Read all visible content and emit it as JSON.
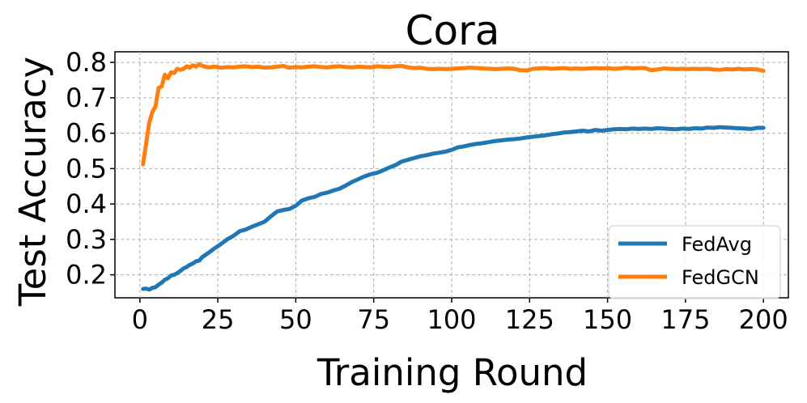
{
  "chart_data": {
    "type": "line",
    "title": "Cora",
    "xlabel": "Training Round",
    "ylabel": "Test Accuracy",
    "xlim": [
      -8,
      208
    ],
    "ylim": [
      0.135,
      0.83
    ],
    "x_ticks": [
      0,
      25,
      50,
      75,
      100,
      125,
      150,
      175,
      200
    ],
    "y_ticks": [
      0.2,
      0.3,
      0.4,
      0.5,
      0.6,
      0.7,
      0.8
    ],
    "y_tick_labels": [
      "0.2",
      "0.3",
      "0.4",
      "0.5",
      "0.6",
      "0.7",
      "0.8"
    ],
    "grid": true,
    "legend_position": "lower-right",
    "series": [
      {
        "name": "FedAvg",
        "color": "#1f77b4",
        "points": [
          [
            1,
            0.16
          ],
          [
            2,
            0.161
          ],
          [
            3,
            0.158
          ],
          [
            4,
            0.163
          ],
          [
            5,
            0.165
          ],
          [
            6,
            0.172
          ],
          [
            7,
            0.178
          ],
          [
            8,
            0.186
          ],
          [
            9,
            0.19
          ],
          [
            10,
            0.198
          ],
          [
            11,
            0.2
          ],
          [
            12,
            0.205
          ],
          [
            13,
            0.211
          ],
          [
            14,
            0.218
          ],
          [
            15,
            0.222
          ],
          [
            16,
            0.228
          ],
          [
            17,
            0.232
          ],
          [
            18,
            0.238
          ],
          [
            19,
            0.24
          ],
          [
            20,
            0.25
          ],
          [
            22,
            0.262
          ],
          [
            24,
            0.275
          ],
          [
            26,
            0.287
          ],
          [
            28,
            0.3
          ],
          [
            30,
            0.31
          ],
          [
            32,
            0.323
          ],
          [
            34,
            0.328
          ],
          [
            36,
            0.336
          ],
          [
            38,
            0.343
          ],
          [
            40,
            0.35
          ],
          [
            42,
            0.365
          ],
          [
            44,
            0.379
          ],
          [
            46,
            0.383
          ],
          [
            48,
            0.386
          ],
          [
            50,
            0.395
          ],
          [
            52,
            0.41
          ],
          [
            54,
            0.416
          ],
          [
            56,
            0.42
          ],
          [
            58,
            0.428
          ],
          [
            60,
            0.432
          ],
          [
            62,
            0.438
          ],
          [
            64,
            0.443
          ],
          [
            66,
            0.452
          ],
          [
            68,
            0.462
          ],
          [
            70,
            0.47
          ],
          [
            72,
            0.478
          ],
          [
            74,
            0.484
          ],
          [
            76,
            0.488
          ],
          [
            78,
            0.495
          ],
          [
            80,
            0.503
          ],
          [
            82,
            0.51
          ],
          [
            84,
            0.52
          ],
          [
            86,
            0.525
          ],
          [
            88,
            0.53
          ],
          [
            90,
            0.535
          ],
          [
            92,
            0.538
          ],
          [
            94,
            0.542
          ],
          [
            96,
            0.545
          ],
          [
            98,
            0.548
          ],
          [
            100,
            0.553
          ],
          [
            102,
            0.56
          ],
          [
            104,
            0.563
          ],
          [
            106,
            0.567
          ],
          [
            108,
            0.57
          ],
          [
            110,
            0.572
          ],
          [
            112,
            0.575
          ],
          [
            114,
            0.578
          ],
          [
            116,
            0.58
          ],
          [
            118,
            0.582
          ],
          [
            120,
            0.583
          ],
          [
            122,
            0.585
          ],
          [
            124,
            0.588
          ],
          [
            126,
            0.59
          ],
          [
            128,
            0.592
          ],
          [
            130,
            0.594
          ],
          [
            132,
            0.597
          ],
          [
            134,
            0.599
          ],
          [
            136,
            0.602
          ],
          [
            138,
            0.603
          ],
          [
            140,
            0.605
          ],
          [
            142,
            0.607
          ],
          [
            144,
            0.605
          ],
          [
            146,
            0.609
          ],
          [
            148,
            0.607
          ],
          [
            150,
            0.609
          ],
          [
            152,
            0.611
          ],
          [
            154,
            0.612
          ],
          [
            156,
            0.611
          ],
          [
            158,
            0.613
          ],
          [
            160,
            0.612
          ],
          [
            162,
            0.613
          ],
          [
            164,
            0.612
          ],
          [
            166,
            0.614
          ],
          [
            168,
            0.613
          ],
          [
            170,
            0.612
          ],
          [
            172,
            0.611
          ],
          [
            174,
            0.613
          ],
          [
            176,
            0.612
          ],
          [
            178,
            0.614
          ],
          [
            180,
            0.613
          ],
          [
            182,
            0.616
          ],
          [
            184,
            0.615
          ],
          [
            186,
            0.617
          ],
          [
            188,
            0.616
          ],
          [
            190,
            0.615
          ],
          [
            192,
            0.614
          ],
          [
            194,
            0.613
          ],
          [
            196,
            0.612
          ],
          [
            198,
            0.615
          ],
          [
            200,
            0.615
          ]
        ]
      },
      {
        "name": "FedGCN",
        "color": "#ff7f0e",
        "points": [
          [
            1,
            0.512
          ],
          [
            2,
            0.57
          ],
          [
            3,
            0.63
          ],
          [
            4,
            0.66
          ],
          [
            5,
            0.675
          ],
          [
            6,
            0.728
          ],
          [
            7,
            0.732
          ],
          [
            8,
            0.765
          ],
          [
            9,
            0.755
          ],
          [
            10,
            0.772
          ],
          [
            11,
            0.77
          ],
          [
            12,
            0.782
          ],
          [
            13,
            0.779
          ],
          [
            14,
            0.782
          ],
          [
            15,
            0.789
          ],
          [
            16,
            0.785
          ],
          [
            17,
            0.792
          ],
          [
            18,
            0.788
          ],
          [
            19,
            0.795
          ],
          [
            20,
            0.79
          ],
          [
            22,
            0.786
          ],
          [
            24,
            0.788
          ],
          [
            26,
            0.785
          ],
          [
            28,
            0.787
          ],
          [
            30,
            0.786
          ],
          [
            32,
            0.788
          ],
          [
            34,
            0.789
          ],
          [
            36,
            0.787
          ],
          [
            38,
            0.788
          ],
          [
            40,
            0.785
          ],
          [
            42,
            0.786
          ],
          [
            44,
            0.788
          ],
          [
            46,
            0.79
          ],
          [
            48,
            0.785
          ],
          [
            50,
            0.787
          ],
          [
            52,
            0.786
          ],
          [
            54,
            0.788
          ],
          [
            56,
            0.789
          ],
          [
            58,
            0.787
          ],
          [
            60,
            0.786
          ],
          [
            62,
            0.788
          ],
          [
            64,
            0.789
          ],
          [
            66,
            0.787
          ],
          [
            68,
            0.786
          ],
          [
            70,
            0.788
          ],
          [
            72,
            0.787
          ],
          [
            74,
            0.786
          ],
          [
            76,
            0.789
          ],
          [
            78,
            0.788
          ],
          [
            80,
            0.787
          ],
          [
            82,
            0.789
          ],
          [
            84,
            0.79
          ],
          [
            86,
            0.786
          ],
          [
            88,
            0.784
          ],
          [
            90,
            0.785
          ],
          [
            92,
            0.782
          ],
          [
            94,
            0.781
          ],
          [
            96,
            0.782
          ],
          [
            98,
            0.781
          ],
          [
            100,
            0.782
          ],
          [
            102,
            0.783
          ],
          [
            104,
            0.784
          ],
          [
            106,
            0.785
          ],
          [
            108,
            0.784
          ],
          [
            110,
            0.783
          ],
          [
            112,
            0.782
          ],
          [
            114,
            0.781
          ],
          [
            116,
            0.782
          ],
          [
            118,
            0.783
          ],
          [
            120,
            0.782
          ],
          [
            122,
            0.778
          ],
          [
            124,
            0.777
          ],
          [
            126,
            0.782
          ],
          [
            128,
            0.783
          ],
          [
            130,
            0.784
          ],
          [
            132,
            0.782
          ],
          [
            134,
            0.783
          ],
          [
            136,
            0.784
          ],
          [
            138,
            0.782
          ],
          [
            140,
            0.783
          ],
          [
            142,
            0.782
          ],
          [
            144,
            0.783
          ],
          [
            146,
            0.784
          ],
          [
            148,
            0.783
          ],
          [
            150,
            0.784
          ],
          [
            152,
            0.782
          ],
          [
            154,
            0.783
          ],
          [
            156,
            0.785
          ],
          [
            158,
            0.783
          ],
          [
            160,
            0.784
          ],
          [
            162,
            0.784
          ],
          [
            164,
            0.778
          ],
          [
            166,
            0.78
          ],
          [
            168,
            0.783
          ],
          [
            170,
            0.782
          ],
          [
            172,
            0.781
          ],
          [
            174,
            0.782
          ],
          [
            176,
            0.781
          ],
          [
            178,
            0.782
          ],
          [
            180,
            0.781
          ],
          [
            182,
            0.782
          ],
          [
            184,
            0.78
          ],
          [
            186,
            0.779
          ],
          [
            188,
            0.781
          ],
          [
            190,
            0.78
          ],
          [
            192,
            0.782
          ],
          [
            194,
            0.78
          ],
          [
            196,
            0.781
          ],
          [
            198,
            0.78
          ],
          [
            200,
            0.776
          ]
        ]
      }
    ]
  }
}
